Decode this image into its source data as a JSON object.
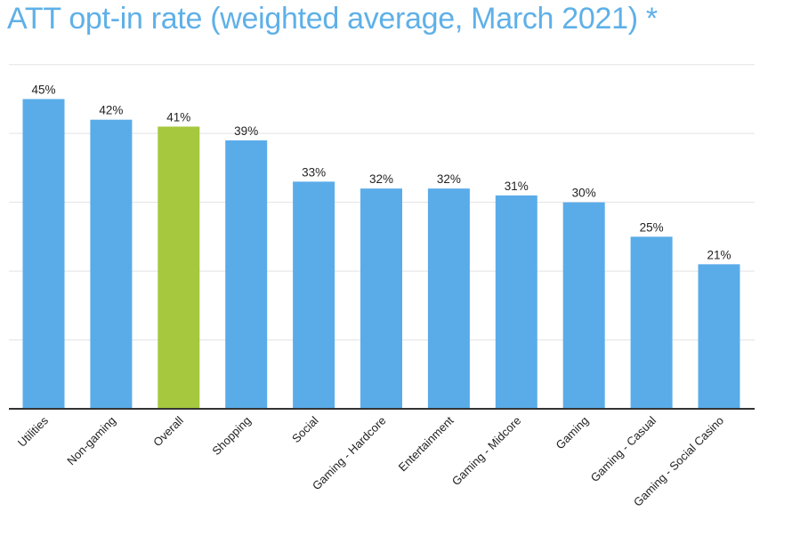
{
  "title": "ATT opt-in rate (weighted average, March 2021) *",
  "colors": {
    "title": "#5fb0e8",
    "bar": "#5aace9",
    "highlight_bar": "#a5c83f",
    "grid": "#e3e3e3",
    "axis": "#333333"
  },
  "chart_data": {
    "type": "bar",
    "categories": [
      "Utilities",
      "Non-gaming",
      "Overall",
      "Shopping",
      "Social",
      "Gaming - Hardcore",
      "Entertainment",
      "Gaming - Midcore",
      "Gaming",
      "Gaming - Casual",
      "Gaming - Social Casino"
    ],
    "values": [
      45,
      42,
      41,
      39,
      33,
      32,
      32,
      31,
      30,
      25,
      21
    ],
    "value_labels": [
      "45%",
      "42%",
      "41%",
      "39%",
      "33%",
      "32%",
      "32%",
      "31%",
      "30%",
      "25%",
      "21%"
    ],
    "highlight_category": "Overall",
    "title": "ATT opt-in rate (weighted average, March 2021) *",
    "xlabel": "",
    "ylabel": "",
    "ylim": [
      0,
      55
    ],
    "y_tick_labels_visible": false,
    "grid": true,
    "legend": "none"
  }
}
